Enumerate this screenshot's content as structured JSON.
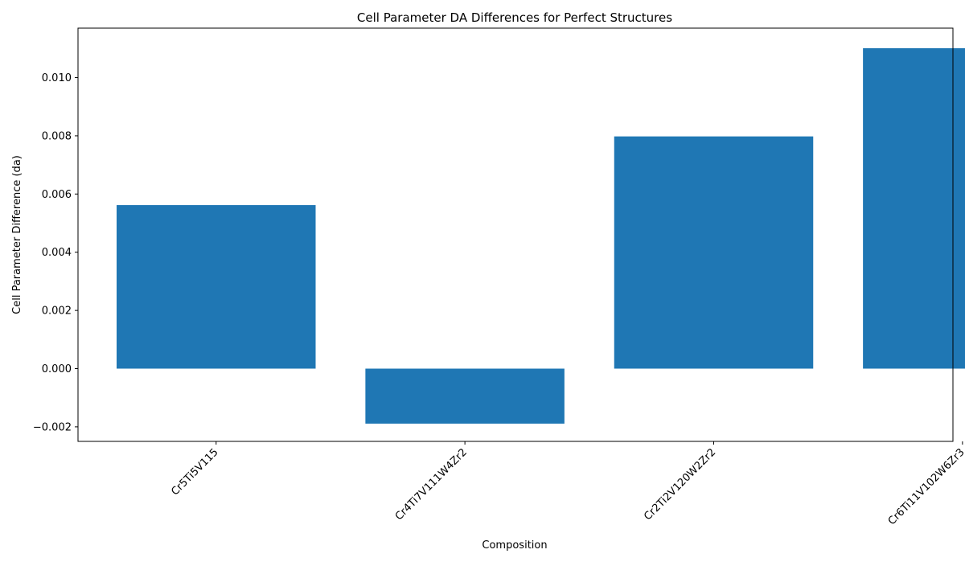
{
  "chart_data": {
    "type": "bar",
    "title": "Cell Parameter DA Differences for Perfect Structures",
    "xlabel": "Composition",
    "ylabel": "Cell Parameter Difference (da)",
    "categories": [
      "Cr5Ti5V115",
      "Cr4Ti7V111W4Zr2",
      "Cr2Ti2V120W2Zr2",
      "Cr6Ti11V102W6Zr3"
    ],
    "values": [
      0.00562,
      -0.00189,
      0.00798,
      0.01101
    ],
    "ylim": [
      -0.0025,
      0.0117
    ],
    "yticks": [
      -0.002,
      0.0,
      0.002,
      0.004,
      0.006,
      0.008,
      0.01
    ],
    "ytick_labels": [
      "−0.002",
      "0.000",
      "0.002",
      "0.004",
      "0.006",
      "0.008",
      "0.010"
    ],
    "bar_color": "#1f77b4",
    "grid": false,
    "legend": "none"
  }
}
